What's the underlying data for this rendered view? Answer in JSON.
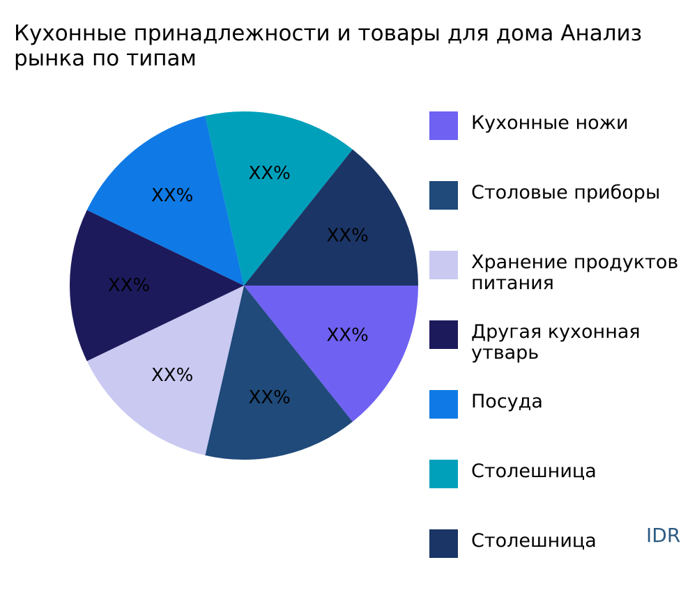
{
  "chart_data": {
    "type": "pie",
    "title": "Кухонные принадлежности и товары для дома Анализ\nрынка по типам",
    "categories": [
      "Кухонные ножи",
      "Столовые приборы",
      "Хранение продуктов\nпитания",
      "Другая кухонная утварь",
      "Посуда",
      "Столешница",
      "Столешница"
    ],
    "values": [
      14.29,
      14.29,
      14.29,
      14.29,
      14.29,
      14.29,
      14.29
    ],
    "slice_labels": [
      "XX%",
      "XX%",
      "XX%",
      "XX%",
      "XX%",
      "XX%",
      "XX%"
    ],
    "colors": [
      "#6f61f2",
      "#1f4a7a",
      "#c9c9f2",
      "#1d1a5c",
      "#0f7ae5",
      "#00a0bb",
      "#1b3566"
    ],
    "start_angle_deg": 0,
    "direction": "clockwise",
    "legend_position": "right"
  },
  "watermark": "IDR"
}
